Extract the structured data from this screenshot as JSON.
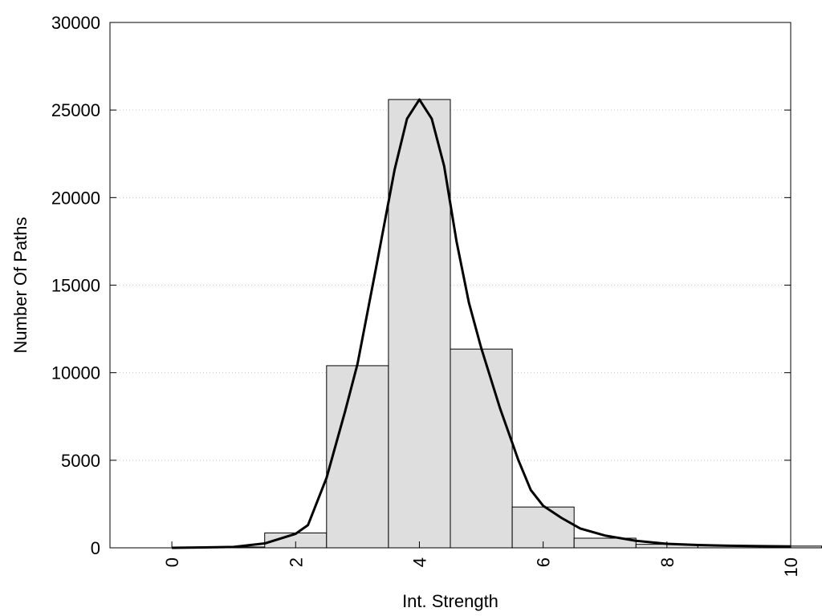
{
  "chart_data": {
    "type": "bar",
    "title": "",
    "xlabel": "Int. Strength",
    "ylabel": "Number Of Paths",
    "xlim": [
      -1,
      10
    ],
    "ylim": [
      0,
      30000
    ],
    "xticks": [
      0,
      2,
      4,
      6,
      8,
      10
    ],
    "yticks": [
      0,
      5000,
      10000,
      15000,
      20000,
      25000,
      30000
    ],
    "grid": "horizontal-dotted",
    "bar_color": "#dedede",
    "bar_edge_color": "#000000",
    "line_color": "#000000",
    "bars": [
      {
        "x": 1,
        "value": 50
      },
      {
        "x": 2,
        "value": 850
      },
      {
        "x": 3,
        "value": 10400
      },
      {
        "x": 4,
        "value": 25600
      },
      {
        "x": 5,
        "value": 11350
      },
      {
        "x": 6,
        "value": 2330
      },
      {
        "x": 7,
        "value": 550
      },
      {
        "x": 8,
        "value": 200
      },
      {
        "x": 9,
        "value": 120
      },
      {
        "x": 10,
        "value": 100
      }
    ],
    "curve": {
      "x": [
        0,
        0.5,
        1,
        1.5,
        2,
        2.2,
        2.5,
        2.8,
        3,
        3.3,
        3.6,
        3.8,
        4,
        4.2,
        4.4,
        4.6,
        4.8,
        5,
        5.3,
        5.6,
        5.8,
        6,
        6.3,
        6.6,
        7,
        7.5,
        8,
        8.5,
        9,
        9.5,
        10
      ],
      "y": [
        0,
        20,
        50,
        250,
        800,
        1300,
        4000,
        7800,
        10500,
        16000,
        21600,
        24500,
        25600,
        24500,
        21800,
        17500,
        14000,
        11400,
        8000,
        5000,
        3300,
        2400,
        1700,
        1100,
        700,
        400,
        230,
        160,
        120,
        100,
        80
      ]
    }
  }
}
